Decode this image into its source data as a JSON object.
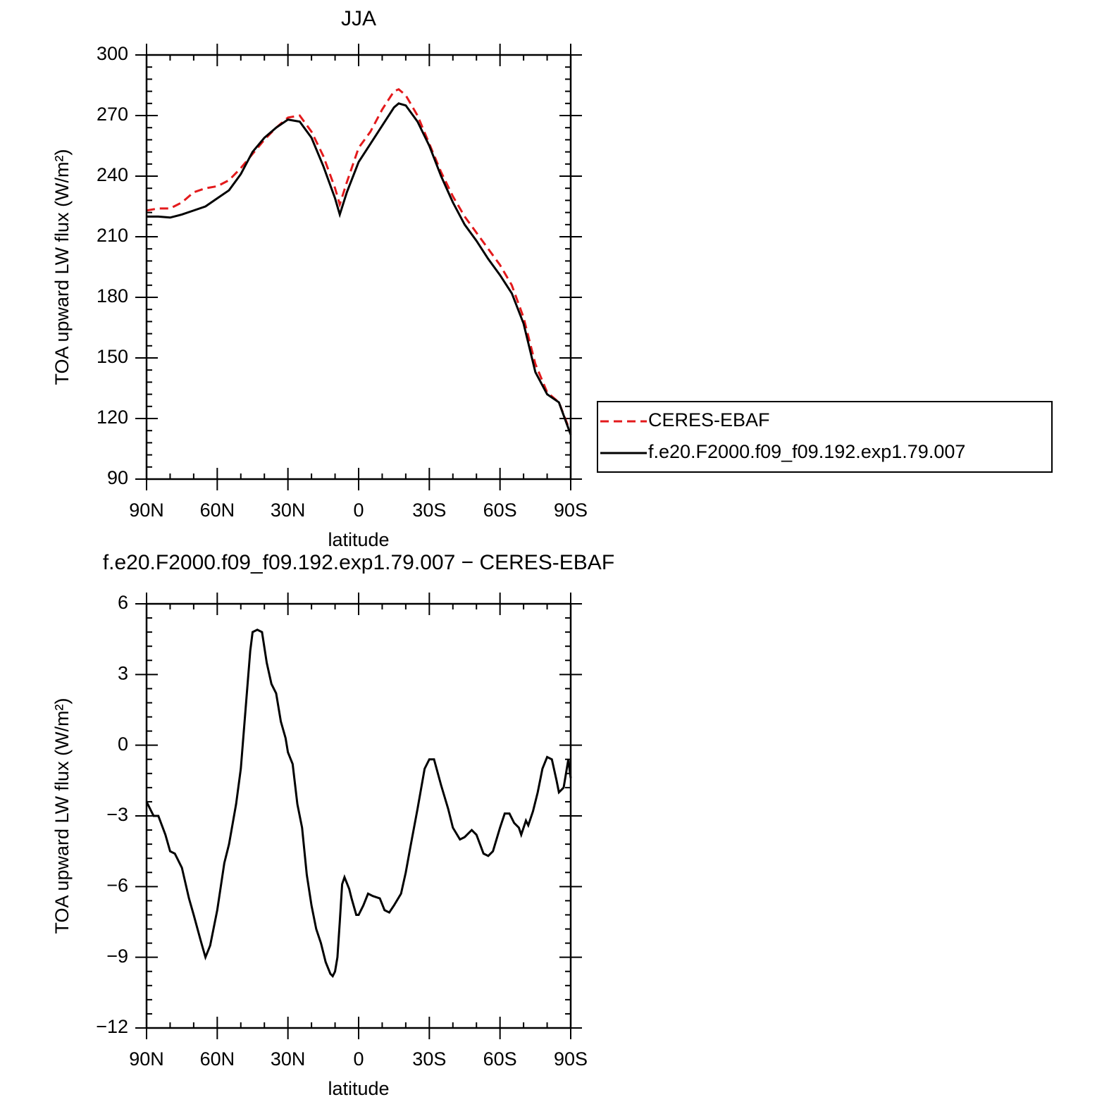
{
  "chart_data": [
    {
      "type": "line",
      "title": "JJA",
      "x_label": "latitude",
      "y_label": "TOA upward LW flux (W/m²)",
      "x": [
        90,
        85,
        80,
        75,
        70,
        65,
        60,
        55,
        50,
        45,
        40,
        35,
        30,
        25,
        20,
        15,
        10,
        8,
        5,
        0,
        -5,
        -10,
        -15,
        -17,
        -20,
        -25,
        -30,
        -35,
        -40,
        -45,
        -50,
        -55,
        -60,
        -65,
        -70,
        -75,
        -80,
        -85,
        -90
      ],
      "series": [
        {
          "name": "CERES-EBAF",
          "color": "#e31a1c",
          "dash": true,
          "values": [
            223,
            224,
            224,
            227,
            232,
            234,
            235,
            238,
            244,
            251,
            258,
            264,
            269,
            270,
            262,
            250,
            234,
            226,
            237,
            254,
            262,
            273,
            282,
            283,
            280,
            270,
            256,
            242,
            230,
            220,
            212,
            204,
            196,
            186,
            170,
            147,
            133,
            128,
            113
          ]
        },
        {
          "name": "f.e20.F2000.f09_f09.192.exp1.79.007",
          "color": "#000000",
          "dash": false,
          "values": [
            220,
            220,
            219.5,
            221,
            223,
            225,
            229,
            233,
            241,
            252,
            259,
            264,
            268,
            267,
            259,
            245,
            229,
            221,
            232,
            247,
            256,
            265,
            274,
            276,
            275,
            267,
            255,
            240,
            227,
            216,
            208,
            199,
            191,
            182,
            167,
            143,
            132,
            128,
            112
          ]
        }
      ],
      "xlim": [
        90,
        -90
      ],
      "xticks": [
        {
          "value": 90,
          "label": "90N"
        },
        {
          "value": 60,
          "label": "60N"
        },
        {
          "value": 30,
          "label": "30N"
        },
        0,
        {
          "value": -30,
          "label": "30S"
        },
        {
          "value": -60,
          "label": "60S"
        },
        {
          "value": -90,
          "label": "90S"
        }
      ],
      "ylim": [
        90,
        300
      ],
      "yticks": [
        90,
        120,
        150,
        180,
        210,
        240,
        270,
        300
      ],
      "legend": "right"
    },
    {
      "type": "line",
      "title": "f.e20.F2000.f09_f09.192.exp1.79.007 − CERES-EBAF",
      "x_label": "latitude",
      "y_label": "TOA upward LW flux (W/m²)",
      "x": [
        90,
        87,
        85,
        82,
        80,
        78,
        75,
        72,
        70,
        67,
        65,
        63,
        60,
        57,
        55,
        52,
        50,
        48,
        46,
        45,
        43,
        41,
        39,
        37,
        35,
        33,
        31,
        30,
        28,
        26,
        24,
        22,
        20,
        18,
        16,
        14,
        12,
        11,
        10,
        9,
        8,
        7,
        6,
        4,
        3,
        1,
        0,
        -2,
        -4,
        -6,
        -9,
        -11,
        -13,
        -15,
        -18,
        -20,
        -22,
        -25,
        -28,
        -30,
        -32,
        -35,
        -38,
        -40,
        -43,
        -45,
        -48,
        -50,
        -53,
        -55,
        -57,
        -60,
        -62,
        -64,
        -66,
        -68,
        -69,
        -70,
        -71,
        -72,
        -74,
        -76,
        -78,
        -80,
        -82,
        -84,
        -85,
        -87,
        -89,
        -90
      ],
      "values": [
        -2.4,
        -3.0,
        -3.0,
        -3.8,
        -4.5,
        -4.6,
        -5.2,
        -6.5,
        -7.2,
        -8.3,
        -9.0,
        -8.5,
        -7.0,
        -5.0,
        -4.2,
        -2.5,
        -1.0,
        1.5,
        4.0,
        4.8,
        4.9,
        4.8,
        3.5,
        2.6,
        2.2,
        1.0,
        0.3,
        -0.3,
        -0.8,
        -2.5,
        -3.5,
        -5.5,
        -6.8,
        -7.8,
        -8.4,
        -9.2,
        -9.7,
        -9.8,
        -9.6,
        -9.0,
        -7.5,
        -5.9,
        -5.6,
        -6.1,
        -6.5,
        -7.2,
        -7.2,
        -6.8,
        -6.3,
        -6.4,
        -6.5,
        -7.0,
        -7.1,
        -6.8,
        -6.3,
        -5.4,
        -4.3,
        -2.7,
        -1.0,
        -0.6,
        -0.6,
        -1.7,
        -2.7,
        -3.5,
        -4.0,
        -3.9,
        -3.6,
        -3.8,
        -4.6,
        -4.7,
        -4.5,
        -3.5,
        -2.9,
        -2.9,
        -3.3,
        -3.5,
        -3.8,
        -3.5,
        -3.2,
        -3.4,
        -2.8,
        -2.0,
        -1.0,
        -0.5,
        -0.6,
        -1.5,
        -2.0,
        -1.8,
        -0.6,
        -1.4
      ],
      "color": "#000000",
      "xlim": [
        90,
        -90
      ],
      "xticks": [
        {
          "value": 90,
          "label": "90N"
        },
        {
          "value": 60,
          "label": "60N"
        },
        {
          "value": 30,
          "label": "30N"
        },
        0,
        {
          "value": -30,
          "label": "30S"
        },
        {
          "value": -60,
          "label": "60S"
        },
        {
          "value": -90,
          "label": "90S"
        }
      ],
      "ylim": [
        -12,
        6
      ],
      "yticks": [
        {
          "value": -12,
          "label": "−12"
        },
        {
          "value": -9,
          "label": "−9"
        },
        {
          "value": -6,
          "label": "−6"
        },
        {
          "value": -3,
          "label": "−3"
        },
        0,
        3,
        6
      ]
    }
  ]
}
